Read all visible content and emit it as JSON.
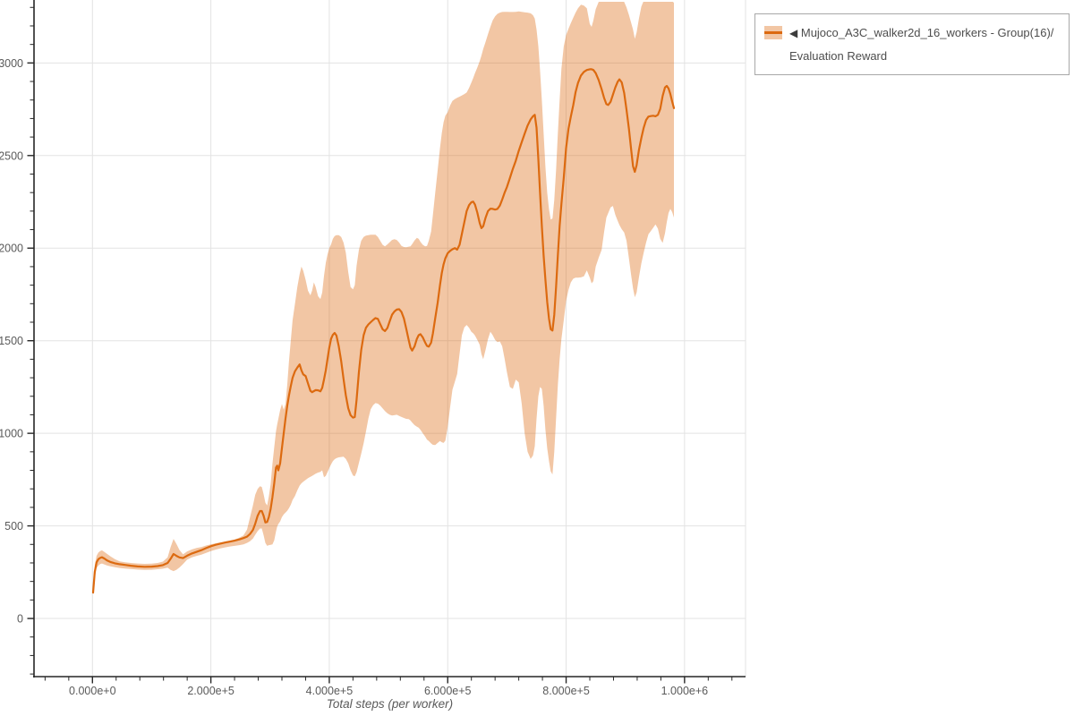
{
  "page": {
    "background": "#ffffff"
  },
  "legend": {
    "collapse_icon": "◀",
    "label": "Mujoco_A3C_walker2d_16_workers - Group(16)/Evaluation Reward",
    "border_color": "#a8a8a8",
    "text_color": "#4d4d4d"
  },
  "chart_data": {
    "type": "line",
    "title": "",
    "xlabel": "Total steps (per worker)",
    "ylabel": "",
    "legend_position": "top-right",
    "grid": "major",
    "series": [
      {
        "name": "Mujoco_A3C_walker2d_16_workers - Group(16)/Evaluation Reward",
        "color": "#DC6A10"
      }
    ],
    "band_opacity": 0.38,
    "line_width": 2.2,
    "axis_color": "#262626",
    "grid_color": "#e3e3e3",
    "tick_label_color": "#5a5a5a",
    "xlim": [
      -98700,
      1103000
    ],
    "ylim": [
      -314,
      3340
    ],
    "x_major_ticks": [
      0,
      200000,
      400000,
      600000,
      800000,
      1000000
    ],
    "x_major_labels": [
      "0.000e+0",
      "2.000e+5",
      "4.000e+5",
      "6.000e+5",
      "8.000e+5",
      "1.000e+6"
    ],
    "x_minor_step": 40000,
    "y_major_ticks": [
      0,
      500,
      1000,
      1500,
      2000,
      2500,
      3000
    ],
    "y_major_labels": [
      "0",
      "500",
      "1000",
      "1500",
      "2000",
      "2500",
      "3000"
    ],
    "y_minor_step": 100,
    "points_format": [
      "step",
      "mean",
      "lower",
      "upper"
    ],
    "points": [
      [
        1000,
        140,
        128,
        152
      ],
      [
        4000,
        252,
        222,
        288
      ],
      [
        7000,
        303,
        272,
        338
      ],
      [
        10000,
        320,
        286,
        356
      ],
      [
        13000,
        327,
        294,
        364
      ],
      [
        16000,
        331,
        297,
        368
      ],
      [
        20000,
        324,
        292,
        360
      ],
      [
        25000,
        313,
        286,
        348
      ],
      [
        31000,
        304,
        281,
        334
      ],
      [
        38000,
        298,
        277,
        320
      ],
      [
        46000,
        293,
        273,
        308
      ],
      [
        55000,
        289,
        270,
        303
      ],
      [
        65000,
        285,
        267,
        300
      ],
      [
        76000,
        281,
        264,
        297
      ],
      [
        88000,
        279,
        262,
        295
      ],
      [
        100000,
        280,
        263,
        296
      ],
      [
        110000,
        283,
        266,
        300
      ],
      [
        119000,
        288,
        269,
        307
      ],
      [
        127000,
        300,
        274,
        330
      ],
      [
        132000,
        322,
        262,
        385
      ],
      [
        137000,
        348,
        256,
        430
      ],
      [
        142000,
        338,
        263,
        402
      ],
      [
        147000,
        330,
        275,
        370
      ],
      [
        153000,
        326,
        294,
        346
      ],
      [
        160000,
        339,
        318,
        362
      ],
      [
        168000,
        351,
        330,
        373
      ],
      [
        176000,
        360,
        338,
        381
      ],
      [
        184000,
        369,
        345,
        386
      ],
      [
        192000,
        380,
        354,
        394
      ],
      [
        200000,
        390,
        364,
        400
      ],
      [
        208000,
        398,
        372,
        406
      ],
      [
        216000,
        404,
        378,
        411
      ],
      [
        224000,
        410,
        384,
        416
      ],
      [
        232000,
        415,
        389,
        421
      ],
      [
        240000,
        420,
        392,
        426
      ],
      [
        248000,
        427,
        396,
        436
      ],
      [
        255000,
        434,
        400,
        448
      ],
      [
        261000,
        442,
        408,
        480
      ],
      [
        266000,
        456,
        417,
        545
      ],
      [
        271000,
        478,
        432,
        610
      ],
      [
        275000,
        512,
        452,
        668
      ],
      [
        279000,
        555,
        472,
        700
      ],
      [
        283000,
        580,
        486,
        714
      ],
      [
        286000,
        580,
        486,
        710
      ],
      [
        289000,
        555,
        450,
        672
      ],
      [
        292000,
        519,
        408,
        625
      ],
      [
        295000,
        521,
        392,
        610
      ],
      [
        298000,
        548,
        396,
        660
      ],
      [
        301000,
        592,
        398,
        725
      ],
      [
        304000,
        655,
        400,
        835
      ],
      [
        307000,
        730,
        422,
        925
      ],
      [
        310000,
        815,
        470,
        1012
      ],
      [
        312000,
        825,
        496,
        1048
      ],
      [
        314000,
        800,
        510,
        1078
      ],
      [
        317000,
        838,
        524,
        1125
      ],
      [
        320000,
        920,
        548,
        1158
      ],
      [
        323000,
        1000,
        562,
        1128
      ],
      [
        326000,
        1080,
        572,
        1158
      ],
      [
        329000,
        1150,
        582,
        1265
      ],
      [
        332000,
        1205,
        596,
        1390
      ],
      [
        335000,
        1255,
        614,
        1500
      ],
      [
        338000,
        1300,
        640,
        1610
      ],
      [
        342000,
        1335,
        662,
        1700
      ],
      [
        346000,
        1355,
        692,
        1790
      ],
      [
        350000,
        1372,
        718,
        1860
      ],
      [
        353000,
        1340,
        730,
        1900
      ],
      [
        356000,
        1318,
        738,
        1878
      ],
      [
        360000,
        1309,
        748,
        1828
      ],
      [
        364000,
        1270,
        758,
        1770
      ],
      [
        368000,
        1230,
        765,
        1745
      ],
      [
        371000,
        1222,
        770,
        1770
      ],
      [
        374000,
        1228,
        776,
        1815
      ],
      [
        377000,
        1233,
        782,
        1790
      ],
      [
        381000,
        1232,
        788,
        1740
      ],
      [
        385000,
        1227,
        792,
        1725
      ],
      [
        388000,
        1245,
        800,
        1760
      ],
      [
        391000,
        1290,
        763,
        1850
      ],
      [
        394000,
        1340,
        770,
        1920
      ],
      [
        397000,
        1400,
        790,
        1965
      ],
      [
        400000,
        1462,
        812,
        2000
      ],
      [
        403000,
        1510,
        832,
        2020
      ],
      [
        406000,
        1532,
        850,
        2050
      ],
      [
        409000,
        1542,
        860,
        2065
      ],
      [
        412000,
        1528,
        866,
        2070
      ],
      [
        416000,
        1470,
        870,
        2070
      ],
      [
        420000,
        1390,
        872,
        2060
      ],
      [
        424000,
        1295,
        874,
        2030
      ],
      [
        428000,
        1205,
        862,
        1975
      ],
      [
        432000,
        1135,
        838,
        1870
      ],
      [
        436000,
        1098,
        800,
        1790
      ],
      [
        440000,
        1085,
        772,
        1778
      ],
      [
        443000,
        1088,
        768,
        1800
      ],
      [
        446000,
        1180,
        790,
        1905
      ],
      [
        450000,
        1330,
        840,
        1990
      ],
      [
        454000,
        1450,
        890,
        2040
      ],
      [
        458000,
        1530,
        946,
        2060
      ],
      [
        462000,
        1570,
        1010,
        2068
      ],
      [
        466000,
        1588,
        1080,
        2070
      ],
      [
        470000,
        1600,
        1130,
        2072
      ],
      [
        474000,
        1612,
        1152,
        2072
      ],
      [
        478000,
        1622,
        1163,
        2072
      ],
      [
        482000,
        1618,
        1160,
        2060
      ],
      [
        486000,
        1590,
        1150,
        2040
      ],
      [
        490000,
        1562,
        1135,
        2018
      ],
      [
        494000,
        1552,
        1120,
        2010
      ],
      [
        498000,
        1568,
        1108,
        2020
      ],
      [
        502000,
        1605,
        1100,
        2032
      ],
      [
        506000,
        1640,
        1096,
        2044
      ],
      [
        510000,
        1658,
        1098,
        2048
      ],
      [
        514000,
        1668,
        1100,
        2044
      ],
      [
        518000,
        1670,
        1094,
        2030
      ],
      [
        522000,
        1655,
        1088,
        2012
      ],
      [
        526000,
        1620,
        1083,
        2006
      ],
      [
        530000,
        1565,
        1078,
        2005
      ],
      [
        534000,
        1505,
        1077,
        2008
      ],
      [
        537000,
        1463,
        1070,
        2010
      ],
      [
        540000,
        1447,
        1058,
        2022
      ],
      [
        544000,
        1470,
        1044,
        2042
      ],
      [
        548000,
        1510,
        1036,
        2056
      ],
      [
        551000,
        1530,
        1030,
        2050
      ],
      [
        554000,
        1535,
        1019,
        2034
      ],
      [
        558000,
        1518,
        1000,
        2018
      ],
      [
        562000,
        1490,
        982,
        2010
      ],
      [
        565000,
        1472,
        966,
        2012
      ],
      [
        568000,
        1468,
        958,
        2040
      ],
      [
        572000,
        1490,
        945,
        2090
      ],
      [
        575000,
        1540,
        938,
        2180
      ],
      [
        579000,
        1622,
        937,
        2300
      ],
      [
        583000,
        1705,
        948,
        2420
      ],
      [
        587000,
        1800,
        958,
        2540
      ],
      [
        590000,
        1865,
        952,
        2620
      ],
      [
        593000,
        1912,
        948,
        2680
      ],
      [
        596000,
        1945,
        960,
        2715
      ],
      [
        600000,
        1972,
        1034,
        2734
      ],
      [
        604000,
        1985,
        1140,
        2770
      ],
      [
        608000,
        1994,
        1235,
        2795
      ],
      [
        612000,
        2000,
        1278,
        2805
      ],
      [
        616000,
        1992,
        1320,
        2812
      ],
      [
        620000,
        2018,
        1430,
        2818
      ],
      [
        624000,
        2078,
        1530,
        2825
      ],
      [
        628000,
        2140,
        1572,
        2832
      ],
      [
        632000,
        2200,
        1585,
        2840
      ],
      [
        636000,
        2232,
        1570,
        2865
      ],
      [
        640000,
        2248,
        1548,
        2895
      ],
      [
        643000,
        2251,
        1540,
        2918
      ],
      [
        646000,
        2235,
        1528,
        2945
      ],
      [
        650000,
        2192,
        1505,
        2975
      ],
      [
        654000,
        2135,
        1478,
        3010
      ],
      [
        657000,
        2108,
        1428,
        3040
      ],
      [
        660000,
        2118,
        1400,
        3075
      ],
      [
        664000,
        2165,
        1452,
        3115
      ],
      [
        668000,
        2200,
        1508,
        3155
      ],
      [
        672000,
        2213,
        1549,
        3195
      ],
      [
        676000,
        2212,
        1530,
        3230
      ],
      [
        680000,
        2208,
        1505,
        3252
      ],
      [
        684000,
        2212,
        1492,
        3265
      ],
      [
        688000,
        2230,
        1496,
        3272
      ],
      [
        692000,
        2262,
        1470,
        3275
      ],
      [
        696000,
        2298,
        1405,
        3276
      ],
      [
        700000,
        2330,
        1330,
        3276
      ],
      [
        705000,
        2378,
        1250,
        3275
      ],
      [
        710000,
        2428,
        1240,
        3275
      ],
      [
        715000,
        2472,
        1290,
        3276
      ],
      [
        720000,
        2525,
        1275,
        3278
      ],
      [
        725000,
        2572,
        1160,
        3276
      ],
      [
        730000,
        2618,
        1000,
        3274
      ],
      [
        735000,
        2662,
        900,
        3272
      ],
      [
        740000,
        2695,
        862,
        3268
      ],
      [
        744000,
        2712,
        880,
        3258
      ],
      [
        747000,
        2720,
        930,
        3240
      ],
      [
        750000,
        2650,
        1080,
        3180
      ],
      [
        753000,
        2480,
        1200,
        3090
      ],
      [
        756000,
        2300,
        1250,
        2960
      ],
      [
        759000,
        2120,
        1240,
        2800
      ],
      [
        762000,
        1960,
        1150,
        2620
      ],
      [
        765000,
        1830,
        1020,
        2440
      ],
      [
        768000,
        1710,
        920,
        2300
      ],
      [
        771000,
        1620,
        850,
        2210
      ],
      [
        774000,
        1562,
        795,
        2155
      ],
      [
        777000,
        1555,
        778,
        2160
      ],
      [
        780000,
        1640,
        900,
        2260
      ],
      [
        783000,
        1790,
        1080,
        2420
      ],
      [
        786000,
        1960,
        1260,
        2620
      ],
      [
        789000,
        2120,
        1400,
        2800
      ],
      [
        792000,
        2240,
        1510,
        2970
      ],
      [
        796000,
        2380,
        1610,
        3090
      ],
      [
        800000,
        2540,
        1715,
        3150
      ],
      [
        804000,
        2645,
        1775,
        3185
      ],
      [
        808000,
        2710,
        1815,
        3215
      ],
      [
        812000,
        2772,
        1835,
        3245
      ],
      [
        816000,
        2842,
        1840,
        3272
      ],
      [
        820000,
        2892,
        1840,
        3295
      ],
      [
        825000,
        2932,
        1842,
        3315
      ],
      [
        830000,
        2952,
        1848,
        3310
      ],
      [
        835000,
        2962,
        1880,
        3295
      ],
      [
        840000,
        2966,
        1840,
        3210
      ],
      [
        843000,
        2966,
        1810,
        3195
      ],
      [
        846000,
        2962,
        1822,
        3230
      ],
      [
        850000,
        2945,
        1900,
        3290
      ],
      [
        855000,
        2908,
        1948,
        3330
      ],
      [
        860000,
        2858,
        1990,
        3340
      ],
      [
        864000,
        2812,
        2085,
        3340
      ],
      [
        868000,
        2778,
        2165,
        3340
      ],
      [
        871000,
        2773,
        2188,
        3340
      ],
      [
        875000,
        2790,
        2220,
        3340
      ],
      [
        879000,
        2828,
        2228,
        3340
      ],
      [
        883000,
        2868,
        2180,
        3340
      ],
      [
        887000,
        2898,
        2148,
        3340
      ],
      [
        890000,
        2912,
        2125,
        3340
      ],
      [
        894000,
        2895,
        2102,
        3340
      ],
      [
        898000,
        2838,
        2085,
        3330
      ],
      [
        902000,
        2748,
        2040,
        3300
      ],
      [
        906000,
        2645,
        1945,
        3260
      ],
      [
        910000,
        2528,
        1850,
        3215
      ],
      [
        913000,
        2442,
        1782,
        3180
      ],
      [
        916000,
        2412,
        1735,
        3130
      ],
      [
        919000,
        2448,
        1760,
        3165
      ],
      [
        923000,
        2530,
        1842,
        3240
      ],
      [
        927000,
        2595,
        1918,
        3305
      ],
      [
        931000,
        2650,
        1975,
        3335
      ],
      [
        935000,
        2692,
        2030,
        3340
      ],
      [
        939000,
        2710,
        2075,
        3340
      ],
      [
        943000,
        2713,
        2092,
        3340
      ],
      [
        947000,
        2715,
        2110,
        3340
      ],
      [
        951000,
        2712,
        2128,
        3340
      ],
      [
        955000,
        2720,
        2105,
        3340
      ],
      [
        959000,
        2752,
        2050,
        3340
      ],
      [
        963000,
        2822,
        2028,
        3340
      ],
      [
        967000,
        2868,
        2080,
        3340
      ],
      [
        970000,
        2876,
        2140,
        3340
      ],
      [
        973000,
        2862,
        2190,
        3340
      ],
      [
        976000,
        2832,
        2212,
        3340
      ],
      [
        979000,
        2792,
        2195,
        3334
      ],
      [
        982000,
        2756,
        2165,
        3325
      ]
    ]
  }
}
